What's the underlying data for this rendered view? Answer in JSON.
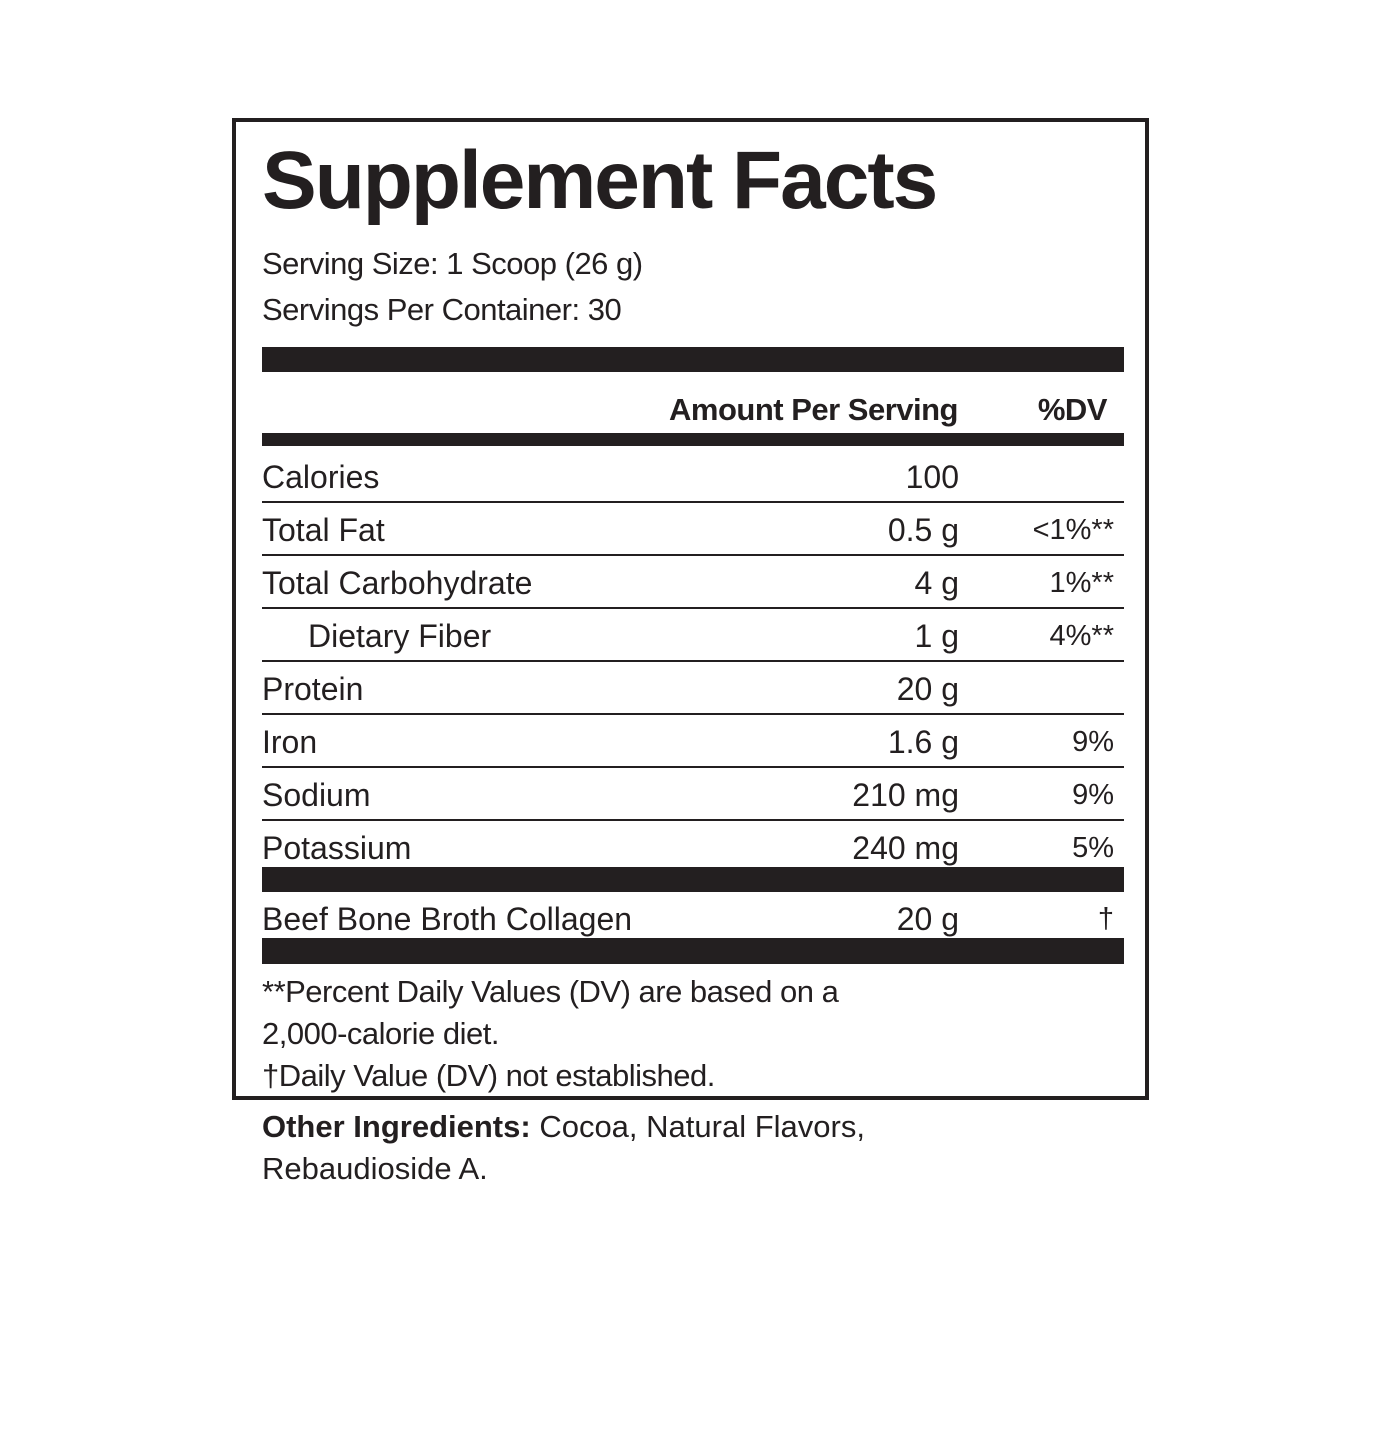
{
  "title": "Supplement Facts",
  "serving_size": "Serving Size: 1 Scoop (26 g)",
  "servings_per_container": "Servings Per Container: 30",
  "header": {
    "amount": "Amount Per Serving",
    "dv": "%DV"
  },
  "rows": [
    {
      "name": "Calories",
      "amount": "100",
      "dv": ""
    },
    {
      "name": "Total Fat",
      "amount": "0.5 g",
      "dv": "<1%**"
    },
    {
      "name": "Total Carbohydrate",
      "amount": "4 g",
      "dv": "1%**"
    },
    {
      "name": "Dietary Fiber",
      "amount": "1 g",
      "dv": "4%**"
    },
    {
      "name": "Protein",
      "amount": "20 g",
      "dv": ""
    },
    {
      "name": "Iron",
      "amount": "1.6 g",
      "dv": "9%"
    },
    {
      "name": "Sodium",
      "amount": "210 mg",
      "dv": "9%"
    },
    {
      "name": "Potassium",
      "amount": "240 mg",
      "dv": "5%"
    }
  ],
  "special": {
    "name": "Beef Bone Broth Collagen",
    "amount": "20 g",
    "dv": "†"
  },
  "footnotes": [
    "**Percent Daily Values (DV) are based on a",
    "2,000-calorie diet.",
    "†Daily Value (DV) not established."
  ],
  "other_ingredients": {
    "label": "Other Ingredients:",
    "text": " Cocoa, Natural Flavors,",
    "text2": "Rebaudioside A."
  }
}
